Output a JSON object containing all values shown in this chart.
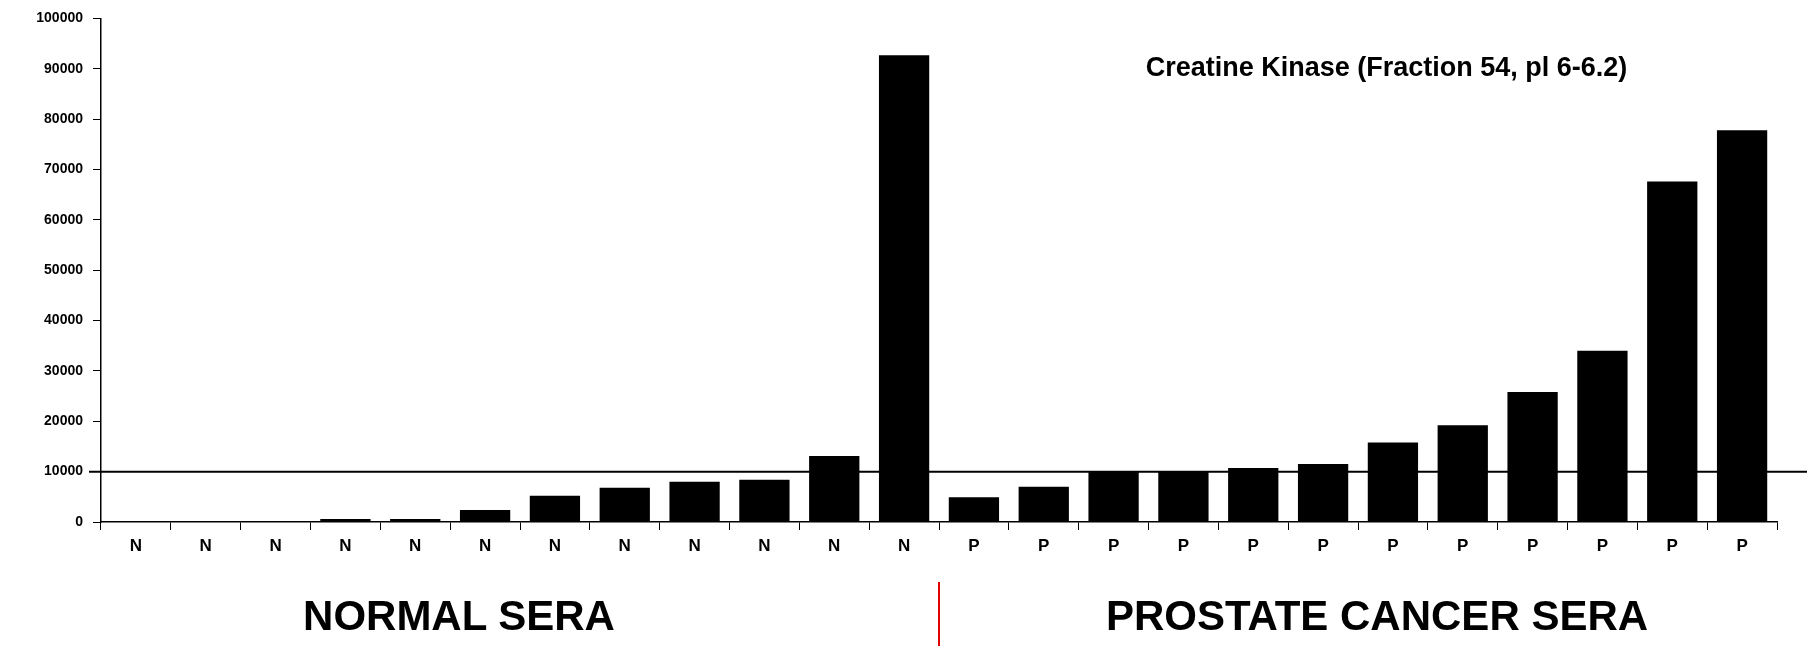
{
  "chart_data": {
    "type": "bar",
    "title": "Creatine Kinase (Fraction 54, pl 6-6.2)",
    "categories": [
      "N",
      "N",
      "N",
      "N",
      "N",
      "N",
      "N",
      "N",
      "N",
      "N",
      "N",
      "N",
      "P",
      "P",
      "P",
      "P",
      "P",
      "P",
      "P",
      "P",
      "P",
      "P",
      "P",
      "P"
    ],
    "values": [
      0,
      0,
      0,
      600,
      600,
      2400,
      5200,
      6800,
      8000,
      8400,
      13100,
      92700,
      4900,
      7000,
      10000,
      10000,
      10700,
      11500,
      15800,
      19200,
      25800,
      34000,
      67600,
      77800
    ],
    "color": "#000000",
    "ylim": [
      0,
      100000
    ],
    "yticks": [
      0,
      10000,
      20000,
      30000,
      40000,
      50000,
      60000,
      70000,
      80000,
      90000,
      100000
    ],
    "ref_lines": [
      {
        "axis": "y",
        "value": 10000,
        "label": null,
        "color": "#000000"
      }
    ],
    "annotations": [
      "NORMAL SERA",
      "PROSTATE CANCER SERA"
    ],
    "grid": false,
    "legend": false
  }
}
